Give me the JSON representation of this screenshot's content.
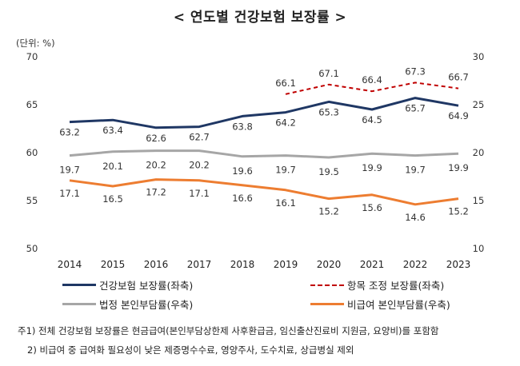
{
  "title": "< 연도별 건강보험 보장률 >",
  "unit_label": "(단위: %)",
  "chart_data": {
    "type": "line",
    "x": [
      "2014",
      "2015",
      "2016",
      "2017",
      "2018",
      "2019",
      "2020",
      "2021",
      "2022",
      "2023"
    ],
    "y_left": {
      "range": [
        50,
        70
      ],
      "ticks": [
        "50",
        "55",
        "60",
        "65",
        "70"
      ]
    },
    "y_right": {
      "range": [
        10,
        30
      ],
      "ticks": [
        "10",
        "15",
        "20",
        "25",
        "30"
      ]
    },
    "grid": false,
    "legend_position": "bottom",
    "series": [
      {
        "name": "건강보험 보장률(좌축)",
        "axis": "left",
        "color": "#1f3764",
        "dash": false,
        "values": [
          63.2,
          63.4,
          62.6,
          62.7,
          63.8,
          64.2,
          65.3,
          64.5,
          65.7,
          64.9
        ],
        "labels": [
          "63.2",
          "63.4",
          "62.6",
          "62.7",
          "63.8",
          "64.2",
          "65.3",
          "64.5",
          "65.7",
          "64.9"
        ]
      },
      {
        "name": "항목 조정 보장률(좌축)",
        "axis": "left",
        "color": "#c00000",
        "dash": true,
        "values": [
          null,
          null,
          null,
          null,
          null,
          66.1,
          67.1,
          66.4,
          67.3,
          66.7
        ],
        "labels": [
          null,
          null,
          null,
          null,
          null,
          "66.1",
          "67.1",
          "66.4",
          "67.3",
          "66.7"
        ]
      },
      {
        "name": "법정 본인부담률(우축)",
        "axis": "right",
        "color": "#a6a6a6",
        "dash": false,
        "values": [
          19.7,
          20.1,
          20.2,
          20.2,
          19.6,
          19.7,
          19.5,
          19.9,
          19.7,
          19.9
        ],
        "labels": [
          "19.7",
          "20.1",
          "20.2",
          "20.2",
          "19.6",
          "19.7",
          "19.5",
          "19.9",
          "19.7",
          "19.9"
        ]
      },
      {
        "name": "비급여 본인부담률(우축)",
        "axis": "right",
        "color": "#ed7d31",
        "dash": false,
        "values": [
          17.1,
          16.5,
          17.2,
          17.1,
          16.6,
          16.1,
          15.2,
          15.6,
          14.6,
          15.2
        ],
        "labels": [
          "17.1",
          "16.5",
          "17.2",
          "17.1",
          "16.6",
          "16.1",
          "15.2",
          "15.6",
          "14.6",
          "15.2"
        ]
      }
    ]
  },
  "notes": [
    "주1) 전체 건강보험 보장률은 현금급여(본인부담상한제 사후환급금, 임신출산진료비 지원금, 요양비)를 포함함",
    "2) 비급여 중 급여화 필요성이 낮은 제증명수수료, 영양주사, 도수치료, 상급병실 제외"
  ]
}
